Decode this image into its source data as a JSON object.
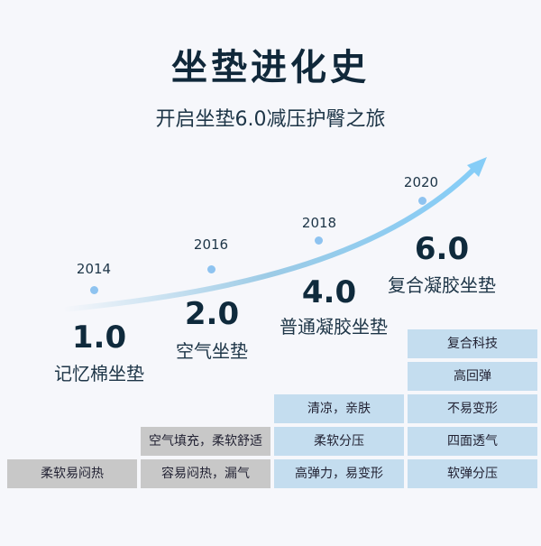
{
  "title": "坐垫进化史",
  "subtitle": "开启坐垫6.0减压护臀之旅",
  "generations": [
    {
      "year": "2014",
      "version": "1.0",
      "name": "记忆棉坐垫",
      "features": [
        "柔软易闷热"
      ]
    },
    {
      "year": "2016",
      "version": "2.0",
      "name": "空气坐垫",
      "features": [
        "空气填充，柔软舒适",
        "容易闷热，漏气"
      ]
    },
    {
      "year": "2018",
      "version": "4.0",
      "name": "普通凝胶坐垫",
      "features": [
        "清凉，亲肤",
        "柔软分压",
        "高弹力，易变形"
      ]
    },
    {
      "year": "2020",
      "version": "6.0",
      "name": "复合凝胶坐垫",
      "features": [
        "复合科技",
        "高回弹",
        "不易变形",
        "四面透气",
        "软弹分压"
      ]
    }
  ],
  "colors": {
    "old": "#c8c8c8",
    "new": "#c4ddef",
    "arrow": "#8fd0f5"
  }
}
